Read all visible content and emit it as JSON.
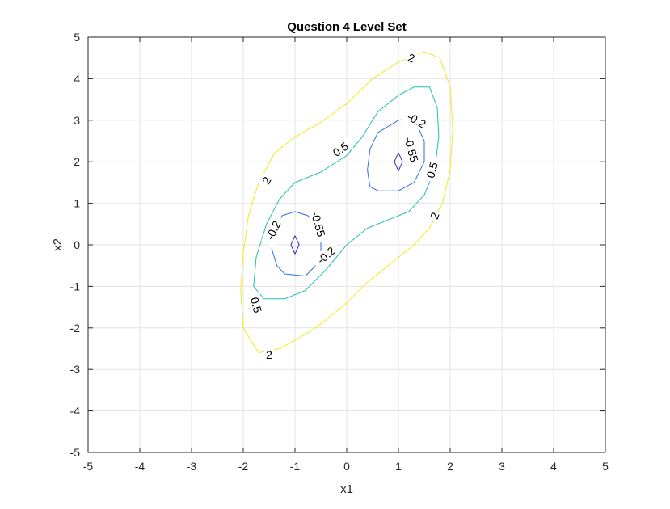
{
  "chart_data": {
    "type": "contour",
    "title": "Question 4 Level Set",
    "xlabel": "x1",
    "ylabel": "x2",
    "xlim": [
      -5,
      5
    ],
    "ylim": [
      -5,
      5
    ],
    "xticks": [
      "-5",
      "-4",
      "-3",
      "-2",
      "-1",
      "0",
      "1",
      "2",
      "3",
      "4",
      "5"
    ],
    "yticks": [
      "-5",
      "-4",
      "-3",
      "-2",
      "-1",
      "0",
      "1",
      "2",
      "3",
      "4",
      "5"
    ],
    "grid": true,
    "levels": [
      {
        "level": -0.55,
        "color": "#3e26a8",
        "paths": [
          [
            [
              -1.0,
              0.22
            ],
            [
              -0.92,
              0.0
            ],
            [
              -1.0,
              -0.22
            ],
            [
              -1.08,
              0.0
            ],
            [
              -1.0,
              0.22
            ]
          ],
          [
            [
              1.0,
              2.22
            ],
            [
              1.08,
              2.0
            ],
            [
              1.0,
              1.78
            ],
            [
              0.92,
              2.0
            ],
            [
              1.0,
              2.22
            ]
          ]
        ]
      },
      {
        "level": -0.2,
        "color": "#2b6ef0",
        "paths": [
          [
            [
              -1.2,
              -0.7
            ],
            [
              -0.8,
              -0.75
            ],
            [
              -0.6,
              -0.5
            ],
            [
              -0.5,
              -0.2
            ],
            [
              -0.5,
              0.2
            ],
            [
              -0.6,
              0.5
            ],
            [
              -0.75,
              0.7
            ],
            [
              -1.0,
              0.8
            ],
            [
              -1.25,
              0.7
            ],
            [
              -1.4,
              0.3
            ],
            [
              -1.45,
              -0.1
            ],
            [
              -1.35,
              -0.5
            ],
            [
              -1.2,
              -0.7
            ]
          ],
          [
            [
              0.6,
              1.3
            ],
            [
              1.0,
              1.3
            ],
            [
              1.3,
              1.5
            ],
            [
              1.5,
              2.0
            ],
            [
              1.5,
              2.5
            ],
            [
              1.3,
              3.05
            ],
            [
              1.0,
              3.0
            ],
            [
              0.6,
              2.7
            ],
            [
              0.45,
              2.3
            ],
            [
              0.4,
              1.8
            ],
            [
              0.45,
              1.4
            ],
            [
              0.6,
              1.3
            ]
          ]
        ]
      },
      {
        "level": 0.5,
        "color": "#1fbfb0",
        "paths": [
          [
            [
              -1.8,
              -1.0
            ],
            [
              -1.75,
              -0.3
            ],
            [
              -1.55,
              0.5
            ],
            [
              -1.3,
              1.1
            ],
            [
              -1.0,
              1.5
            ],
            [
              -0.5,
              1.75
            ],
            [
              0.0,
              2.15
            ],
            [
              0.3,
              2.6
            ],
            [
              0.6,
              3.2
            ],
            [
              1.0,
              3.6
            ],
            [
              1.3,
              3.8
            ],
            [
              1.6,
              3.8
            ],
            [
              1.75,
              3.3
            ],
            [
              1.78,
              2.6
            ],
            [
              1.7,
              1.8
            ],
            [
              1.5,
              1.2
            ],
            [
              1.2,
              0.8
            ],
            [
              0.8,
              0.6
            ],
            [
              0.4,
              0.4
            ],
            [
              0.0,
              0.0
            ],
            [
              -0.4,
              -0.6
            ],
            [
              -0.8,
              -1.1
            ],
            [
              -1.2,
              -1.3
            ],
            [
              -1.6,
              -1.3
            ],
            [
              -1.8,
              -1.0
            ]
          ]
        ]
      },
      {
        "level": 2,
        "color": "#f3e91c",
        "paths": [
          [
            [
              -1.7,
              -2.6
            ],
            [
              -1.3,
              -2.5
            ],
            [
              -1.0,
              -2.3
            ],
            [
              -0.6,
              -2.0
            ],
            [
              -0.3,
              -1.7
            ],
            [
              0.0,
              -1.4
            ],
            [
              0.4,
              -0.9
            ],
            [
              0.9,
              -0.4
            ],
            [
              1.3,
              0.0
            ],
            [
              1.6,
              0.4
            ],
            [
              1.85,
              1.0
            ],
            [
              2.0,
              1.8
            ],
            [
              2.05,
              2.8
            ],
            [
              2.0,
              3.8
            ],
            [
              1.8,
              4.5
            ],
            [
              1.5,
              4.65
            ],
            [
              1.0,
              4.4
            ],
            [
              0.5,
              4.0
            ],
            [
              0.0,
              3.4
            ],
            [
              -0.5,
              2.95
            ],
            [
              -1.0,
              2.6
            ],
            [
              -1.4,
              2.2
            ],
            [
              -1.7,
              1.5
            ],
            [
              -1.9,
              0.7
            ],
            [
              -2.0,
              -0.2
            ],
            [
              -2.05,
              -1.1
            ],
            [
              -2.0,
              -2.0
            ],
            [
              -1.7,
              -2.6
            ]
          ]
        ]
      }
    ],
    "labels": [
      {
        "text": "2",
        "x": 1.25,
        "y": 4.5,
        "angle": 20
      },
      {
        "text": "2",
        "x": -1.55,
        "y": 1.55,
        "angle": -60
      },
      {
        "text": "2",
        "x": 1.7,
        "y": 0.7,
        "angle": -70
      },
      {
        "text": "2",
        "x": -1.5,
        "y": -2.65,
        "angle": 0
      },
      {
        "text": "0.5",
        "x": -0.12,
        "y": 2.3,
        "angle": -35
      },
      {
        "text": "0.5",
        "x": 1.65,
        "y": 1.8,
        "angle": -75
      },
      {
        "text": "0.5",
        "x": -1.75,
        "y": -1.45,
        "angle": 75
      },
      {
        "text": "-0.2",
        "x": 1.35,
        "y": 3.0,
        "angle": 30
      },
      {
        "text": "-0.2",
        "x": -1.42,
        "y": 0.35,
        "angle": -65
      },
      {
        "text": "-0.2",
        "x": -0.4,
        "y": -0.25,
        "angle": -40
      },
      {
        "text": "-0.55",
        "x": 1.25,
        "y": 2.3,
        "angle": 75
      },
      {
        "text": "-0.55",
        "x": -0.55,
        "y": 0.5,
        "angle": 75
      }
    ]
  }
}
